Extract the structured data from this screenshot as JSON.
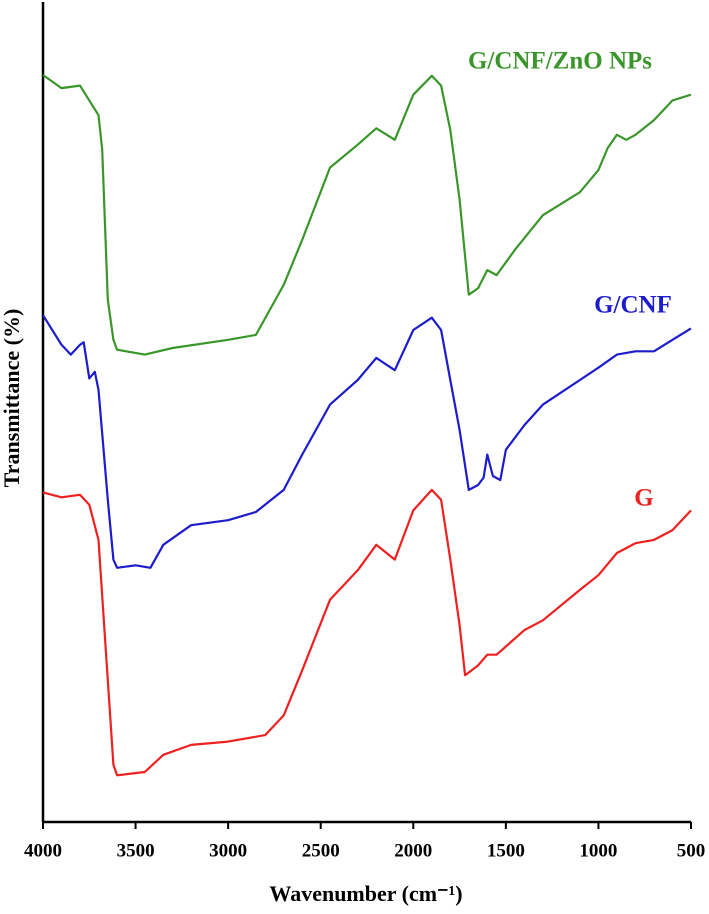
{
  "chart_data": {
    "type": "line",
    "x_label": "Wavenumber (cm⁻¹)",
    "y_label": "Transmittance (%)",
    "xlim": [
      4000,
      500
    ],
    "ylim": [
      0,
      100
    ],
    "xticks": [
      4000,
      3500,
      3000,
      2500,
      2000,
      1500,
      1000,
      500
    ],
    "series": [
      {
        "name": "G/CNF/ZnO NPs",
        "color": "#3a962a",
        "x": [
          4000,
          3900,
          3800,
          3750,
          3700,
          3680,
          3650,
          3620,
          3600,
          3450,
          3300,
          3000,
          2850,
          2700,
          2600,
          2450,
          2300,
          2200,
          2100,
          2000,
          1900,
          1850,
          1800,
          1750,
          1700,
          1650,
          1600,
          1550,
          1450,
          1300,
          1100,
          1000,
          950,
          900,
          850,
          800,
          700,
          600,
          500
        ],
        "values": [
          91.1,
          89.5,
          89.8,
          88.0,
          86.2,
          82.0,
          63.7,
          58.8,
          57.6,
          57.0,
          57.8,
          58.8,
          59.4,
          65.5,
          71.0,
          79.8,
          82.6,
          84.6,
          83.2,
          88.7,
          91.0,
          89.8,
          84.4,
          75.9,
          64.3,
          65.1,
          67.3,
          66.7,
          69.8,
          74.0,
          76.8,
          79.5,
          82.2,
          83.8,
          83.2,
          83.8,
          85.6,
          88.0,
          88.7
        ]
      },
      {
        "name": "G/CNF",
        "color": "#1c1ccc",
        "x": [
          4000,
          3900,
          3850,
          3800,
          3780,
          3750,
          3720,
          3700,
          3650,
          3620,
          3600,
          3500,
          3420,
          3350,
          3200,
          3000,
          2850,
          2700,
          2600,
          2450,
          2300,
          2200,
          2100,
          2000,
          1900,
          1850,
          1800,
          1750,
          1700,
          1650,
          1620,
          1600,
          1570,
          1530,
          1500,
          1400,
          1300,
          1100,
          1000,
          900,
          800,
          700,
          600,
          500
        ],
        "values": [
          61.8,
          58.2,
          57.0,
          58.2,
          58.5,
          54.1,
          54.9,
          52.7,
          39.3,
          32.0,
          31.0,
          31.3,
          31.0,
          33.8,
          36.2,
          36.8,
          37.8,
          40.5,
          44.8,
          50.9,
          53.9,
          56.6,
          55.1,
          60.0,
          61.5,
          60.0,
          53.9,
          47.8,
          40.5,
          41.1,
          42.0,
          44.8,
          42.2,
          41.7,
          45.4,
          48.4,
          50.9,
          53.9,
          55.4,
          57.0,
          57.4,
          57.4,
          58.8,
          60.2
        ]
      },
      {
        "name": "G",
        "color": "#ee2020",
        "x": [
          4000,
          3900,
          3800,
          3750,
          3700,
          3650,
          3620,
          3600,
          3450,
          3350,
          3200,
          3000,
          2800,
          2700,
          2600,
          2450,
          2300,
          2200,
          2100,
          2000,
          1900,
          1850,
          1800,
          1750,
          1720,
          1650,
          1600,
          1550,
          1400,
          1300,
          1100,
          1000,
          900,
          850,
          800,
          700,
          600,
          500
        ],
        "values": [
          40.2,
          39.6,
          39.9,
          38.7,
          34.4,
          17.3,
          7.0,
          5.7,
          6.1,
          8.2,
          9.4,
          9.8,
          10.6,
          13.0,
          18.5,
          27.1,
          30.7,
          33.8,
          32.0,
          38.0,
          40.5,
          39.3,
          32.0,
          24.0,
          17.9,
          19.1,
          20.4,
          20.4,
          23.4,
          24.6,
          28.3,
          30.1,
          32.8,
          33.4,
          34.0,
          34.4,
          35.6,
          38.0
        ]
      }
    ]
  }
}
